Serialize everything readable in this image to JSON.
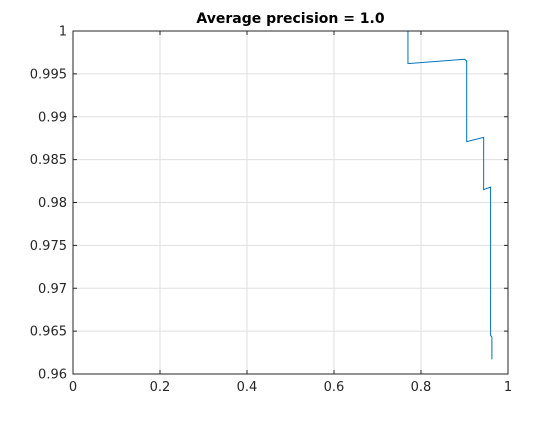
{
  "figure": {
    "background": "#ffffff"
  },
  "chart_data": {
    "type": "line",
    "title": "Average precision = 1.0",
    "xlabel": "",
    "ylabel": "",
    "xlim": [
      0,
      1
    ],
    "ylim": [
      0.96,
      1
    ],
    "xticks": [
      0,
      0.2,
      0.4,
      0.6,
      0.8,
      1
    ],
    "xtick_labels": [
      "0",
      "0.2",
      "0.4",
      "0.6",
      "0.8",
      "1"
    ],
    "yticks": [
      0.96,
      0.965,
      0.97,
      0.975,
      0.98,
      0.985,
      0.99,
      0.995,
      1
    ],
    "ytick_labels": [
      "0.96",
      "0.965",
      "0.97",
      "0.975",
      "0.98",
      "0.985",
      "0.99",
      "0.995",
      "1"
    ],
    "grid": true,
    "colors": {
      "line": "#0072bd",
      "grid": "#dfdfdf",
      "axes": "#262626"
    },
    "series": [
      {
        "x": [
          0,
          0.77,
          0.77,
          0.9,
          0.9,
          0.905,
          0.905,
          0.944,
          0.944,
          0.96,
          0.96,
          0.963,
          0.963
        ],
        "y": [
          1,
          1,
          0.9962,
          0.9967,
          0.9967,
          0.9965,
          0.9871,
          0.9876,
          0.9815,
          0.9818,
          0.9645,
          0.9643,
          0.9617
        ]
      }
    ]
  }
}
